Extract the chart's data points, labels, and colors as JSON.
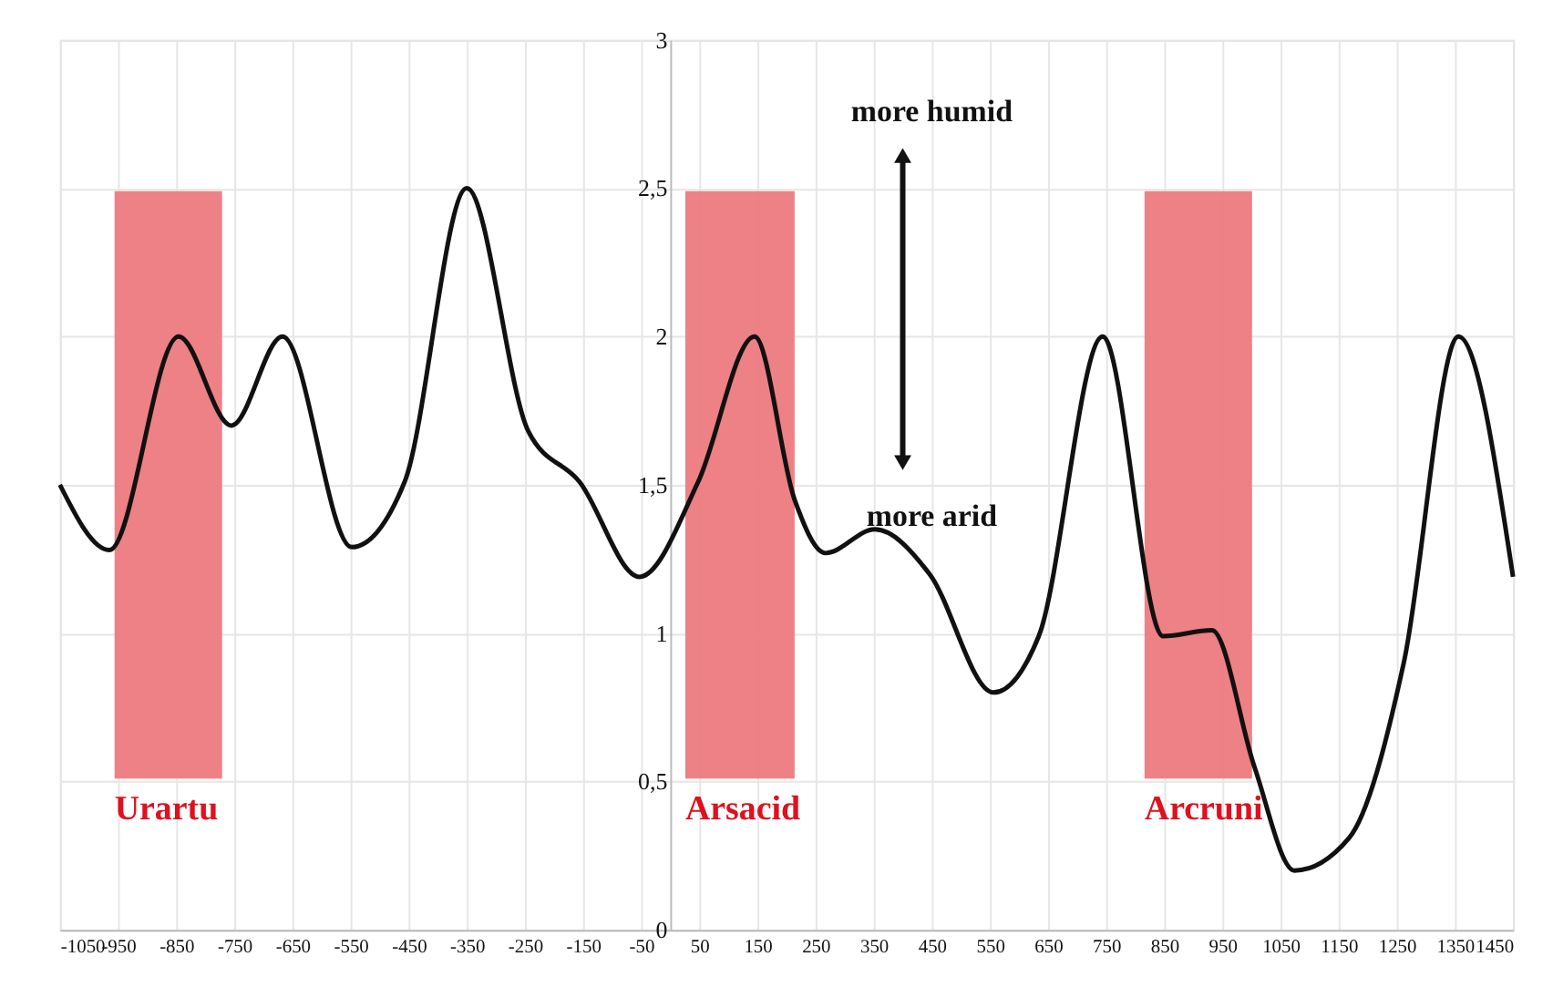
{
  "chart_data": {
    "type": "line",
    "x": [
      -1050,
      -965,
      -846,
      -755,
      -667,
      -548,
      -457,
      -350,
      -244,
      -156,
      -53,
      48,
      145,
      214,
      267,
      352,
      446,
      556,
      634,
      744,
      848,
      932,
      1005,
      1074,
      1168,
      1262,
      1356,
      1450
    ],
    "series": [
      {
        "color": "#111111",
        "values": [
          1.5,
          1.28,
          2.0,
          1.7,
          2.0,
          1.29,
          1.51,
          2.5,
          1.68,
          1.51,
          1.19,
          1.51,
          2.0,
          1.45,
          1.27,
          1.35,
          1.2,
          0.8,
          0.99,
          2.0,
          0.99,
          1.01,
          0.55,
          0.2,
          0.31,
          0.9,
          2.0,
          1.19
        ]
      }
    ],
    "xlim": [
      -1050,
      1450
    ],
    "xticks": [
      -1050,
      -950,
      -850,
      -750,
      -650,
      -550,
      -450,
      -350,
      -250,
      -150,
      -50,
      50,
      150,
      250,
      350,
      450,
      550,
      650,
      750,
      850,
      950,
      1050,
      1150,
      1250,
      1350,
      1450
    ],
    "ylim": [
      0,
      3
    ],
    "yticks": [
      0,
      {
        "value": 0.5,
        "label": "0,5"
      },
      1,
      {
        "value": 1.5,
        "label": "1,5"
      },
      2,
      {
        "value": 2.5,
        "label": "2,5"
      },
      3
    ],
    "bands": [
      {
        "axis": "x",
        "from": -956,
        "to": -771,
        "label": "Urartu",
        "color": "#ec7a80"
      },
      {
        "axis": "x",
        "from": 26,
        "to": 214,
        "label": "Arsacid",
        "color": "#ec7a80"
      },
      {
        "axis": "x",
        "from": 816,
        "to": 1001,
        "label": "Arcruni",
        "color": "#ec7a80"
      }
    ],
    "annotations": [
      "more humid",
      "more arid"
    ],
    "grid": true,
    "marker": "none",
    "line_style": "solid"
  }
}
